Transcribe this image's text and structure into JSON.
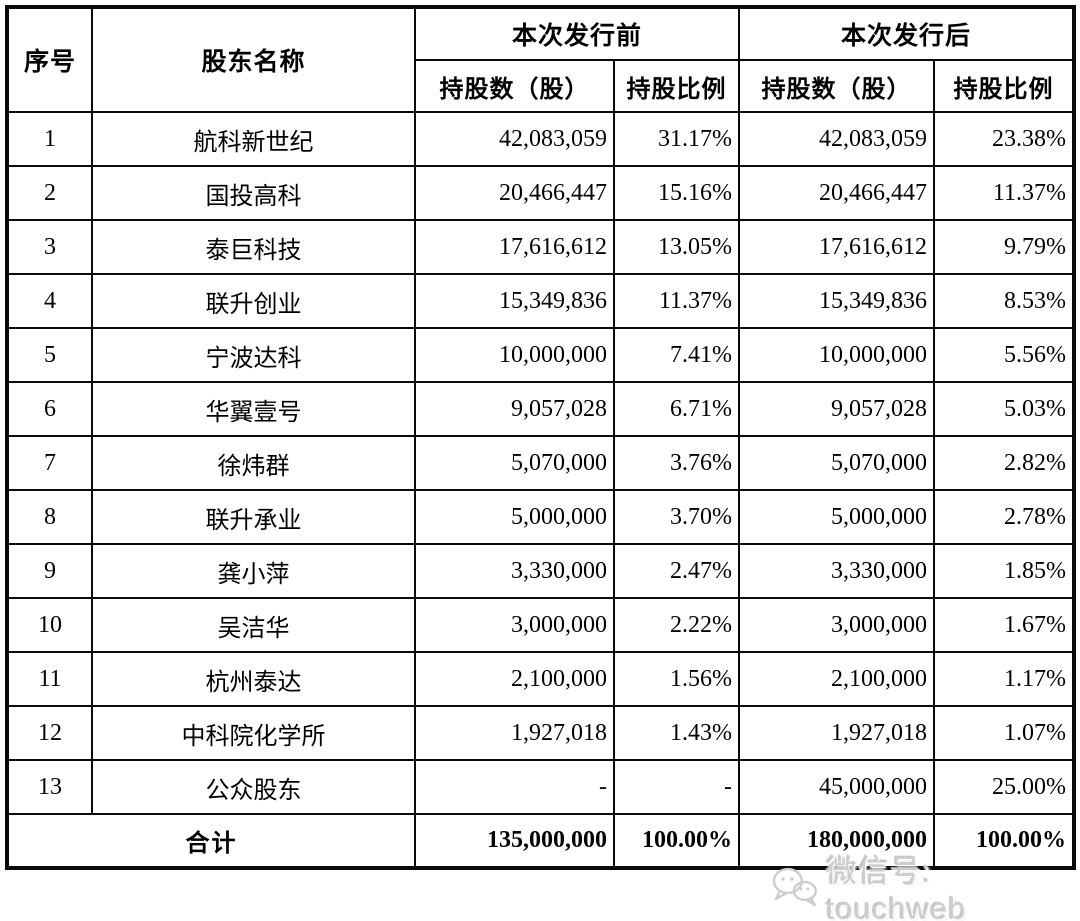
{
  "table": {
    "header": {
      "col_index": "序号",
      "col_name": "股东名称",
      "group_before": "本次发行前",
      "group_after": "本次发行后",
      "sub_headers": [
        "持股数（股）",
        "持股比例",
        "持股数（股）",
        "持股比例"
      ]
    },
    "rows": [
      {
        "index": "1",
        "name": "航科新世纪",
        "shares_before": "42,083,059",
        "ratio_before": "31.17%",
        "shares_after": "42,083,059",
        "ratio_after": "23.38%"
      },
      {
        "index": "2",
        "name": "国投高科",
        "shares_before": "20,466,447",
        "ratio_before": "15.16%",
        "shares_after": "20,466,447",
        "ratio_after": "11.37%"
      },
      {
        "index": "3",
        "name": "泰巨科技",
        "shares_before": "17,616,612",
        "ratio_before": "13.05%",
        "shares_after": "17,616,612",
        "ratio_after": "9.79%"
      },
      {
        "index": "4",
        "name": "联升创业",
        "shares_before": "15,349,836",
        "ratio_before": "11.37%",
        "shares_after": "15,349,836",
        "ratio_after": "8.53%"
      },
      {
        "index": "5",
        "name": "宁波达科",
        "shares_before": "10,000,000",
        "ratio_before": "7.41%",
        "shares_after": "10,000,000",
        "ratio_after": "5.56%"
      },
      {
        "index": "6",
        "name": "华翼壹号",
        "shares_before": "9,057,028",
        "ratio_before": "6.71%",
        "shares_after": "9,057,028",
        "ratio_after": "5.03%"
      },
      {
        "index": "7",
        "name": "徐炜群",
        "shares_before": "5,070,000",
        "ratio_before": "3.76%",
        "shares_after": "5,070,000",
        "ratio_after": "2.82%"
      },
      {
        "index": "8",
        "name": "联升承业",
        "shares_before": "5,000,000",
        "ratio_before": "3.70%",
        "shares_after": "5,000,000",
        "ratio_after": "2.78%"
      },
      {
        "index": "9",
        "name": "龚小萍",
        "shares_before": "3,330,000",
        "ratio_before": "2.47%",
        "shares_after": "3,330,000",
        "ratio_after": "1.85%"
      },
      {
        "index": "10",
        "name": "吴洁华",
        "shares_before": "3,000,000",
        "ratio_before": "2.22%",
        "shares_after": "3,000,000",
        "ratio_after": "1.67%"
      },
      {
        "index": "11",
        "name": "杭州泰达",
        "shares_before": "2,100,000",
        "ratio_before": "1.56%",
        "shares_after": "2,100,000",
        "ratio_after": "1.17%"
      },
      {
        "index": "12",
        "name": "中科院化学所",
        "shares_before": "1,927,018",
        "ratio_before": "1.43%",
        "shares_after": "1,927,018",
        "ratio_after": "1.07%"
      },
      {
        "index": "13",
        "name": "公众股东",
        "shares_before": "-",
        "ratio_before": "-",
        "shares_after": "45,000,000",
        "ratio_after": "25.00%"
      }
    ],
    "total": {
      "label": "合计",
      "shares_before": "135,000,000",
      "ratio_before": "100.00%",
      "shares_after": "180,000,000",
      "ratio_after": "100.00%"
    }
  },
  "watermark": {
    "icon": "wechat-icon",
    "text": "微信号: touchweb",
    "color": "#cdcdcd"
  },
  "colors": {
    "table_border": "#0a0a0a",
    "background": "#ffffff",
    "text": "#000000"
  }
}
